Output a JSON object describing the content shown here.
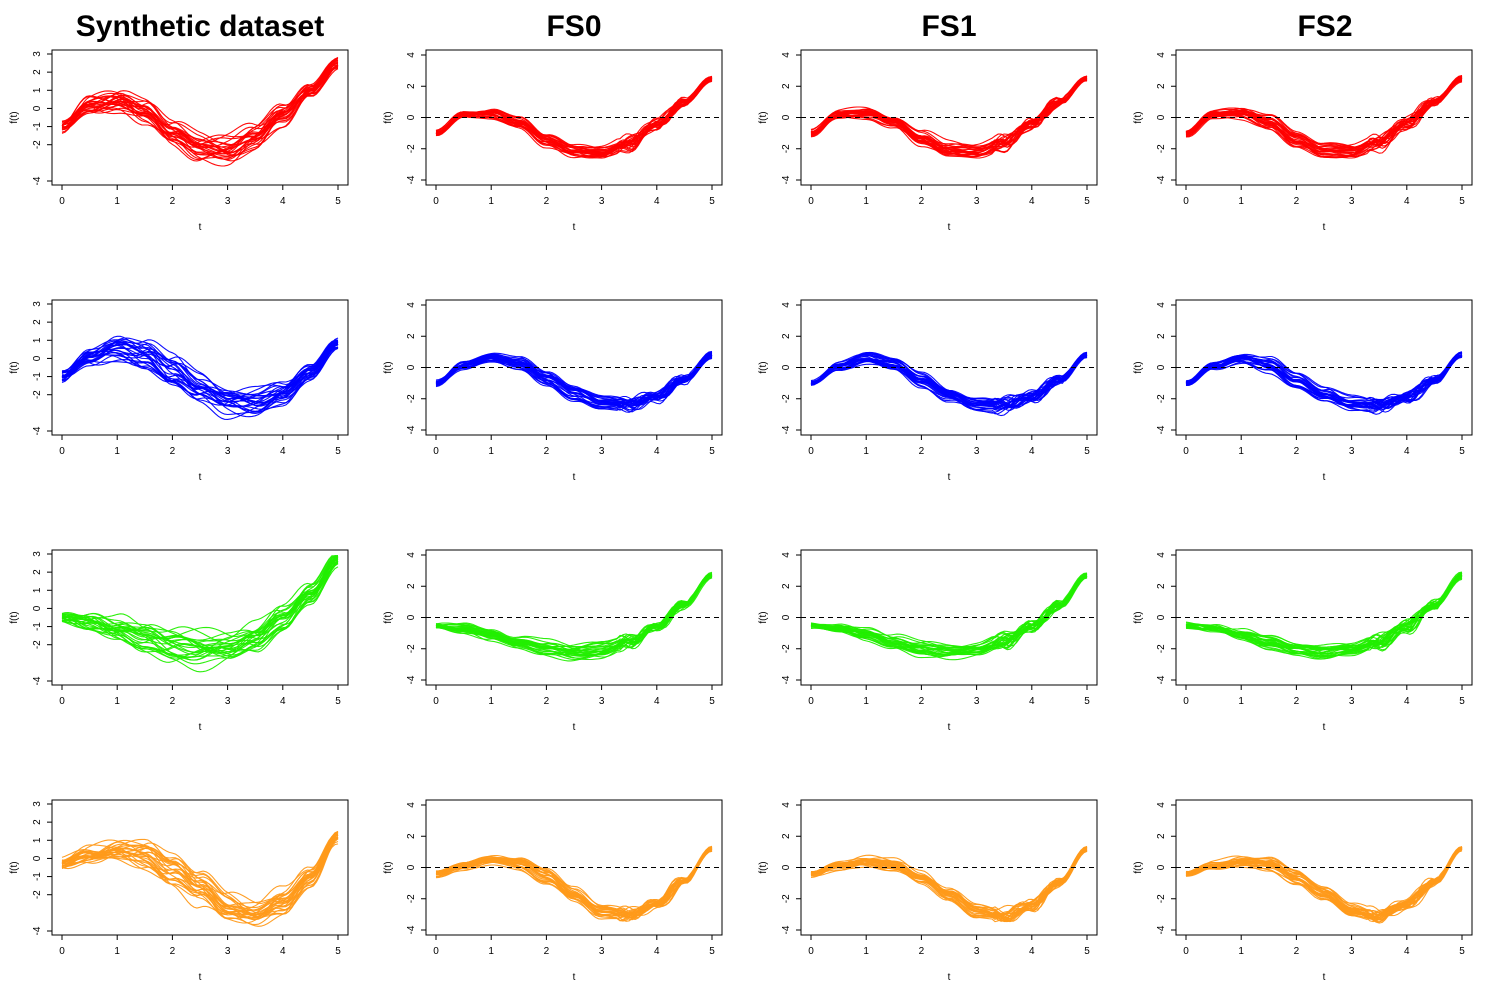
{
  "column_titles": [
    "Synthetic dataset",
    "FS0",
    "FS1",
    "FS2"
  ],
  "chart_data": {
    "type": "line",
    "layout": "grid 4 rows x 4 columns",
    "xlabel": "t",
    "ylabel": "f(t)",
    "x_ticks": [
      0,
      1,
      2,
      3,
      4,
      5
    ],
    "xlim": [
      0,
      5
    ],
    "ylim_synthetic": [
      -4,
      3
    ],
    "y_ticks_synthetic": [
      -4,
      -2,
      -1,
      0,
      1,
      2,
      3
    ],
    "y_tick_labels_synthetic": [
      "-4",
      "-2",
      "-1",
      "0",
      "1",
      "2",
      "3"
    ],
    "ylim_fs": [
      -4,
      4
    ],
    "y_ticks_fs": [
      -4,
      -2,
      0,
      2,
      4
    ],
    "reference_line_fs": 0,
    "rows": [
      {
        "color": "#ff0000",
        "mean_curve_t": [
          0,
          0.5,
          1,
          1.5,
          2,
          2.5,
          3,
          3.5,
          4,
          4.5,
          5
        ],
        "mean_curve_f": [
          -1.0,
          0.2,
          0.3,
          -0.3,
          -1.4,
          -2.1,
          -2.2,
          -1.6,
          -0.4,
          1.0,
          2.5
        ]
      },
      {
        "color": "#0000ff",
        "mean_curve_t": [
          0,
          0.5,
          1,
          1.5,
          2,
          2.5,
          3,
          3.5,
          4,
          4.5,
          5
        ],
        "mean_curve_f": [
          -1.0,
          0.1,
          0.6,
          0.2,
          -0.8,
          -1.7,
          -2.3,
          -2.4,
          -1.9,
          -0.8,
          0.8
        ]
      },
      {
        "color": "#22ee00",
        "mean_curve_t": [
          0,
          0.5,
          1,
          1.5,
          2,
          2.5,
          3,
          3.5,
          4,
          4.5,
          5
        ],
        "mean_curve_f": [
          -0.5,
          -0.7,
          -1.1,
          -1.6,
          -2.0,
          -2.2,
          -2.1,
          -1.6,
          -0.6,
          0.8,
          2.7
        ]
      },
      {
        "color": "#ff9a1a",
        "mean_curve_t": [
          0,
          0.5,
          1,
          1.5,
          2,
          2.5,
          3,
          3.5,
          4,
          4.5,
          5
        ],
        "mean_curve_f": [
          -0.4,
          0.1,
          0.4,
          0.2,
          -0.6,
          -1.7,
          -2.8,
          -3.1,
          -2.4,
          -0.9,
          1.2
        ]
      }
    ]
  }
}
